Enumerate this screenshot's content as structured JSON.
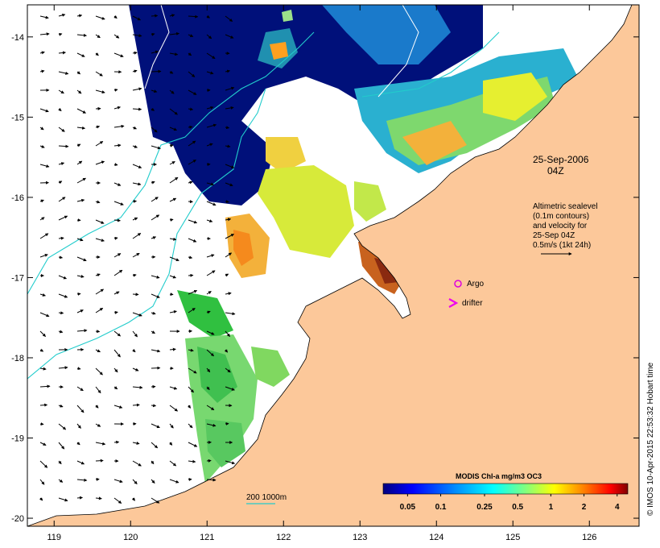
{
  "map": {
    "lon_ticks": [
      "119",
      "120",
      "121",
      "122",
      "123",
      "124",
      "125",
      "126"
    ],
    "lat_ticks": [
      "-14",
      "-15",
      "-16",
      "-17",
      "-18",
      "-19",
      "-20"
    ],
    "lon_range": [
      118.65,
      126.65
    ],
    "lat_range": [
      -13.6,
      -20.1
    ],
    "date_line1": "25-Sep-2006",
    "date_line2": "04Z",
    "altimetry_note": [
      "Altimetric sealevel",
      "(0.1m contours)",
      "and velocity for",
      "25-Sep 04Z",
      "0.5m/s (1kt 24h)"
    ],
    "argo_label": "Argo",
    "drifter_label": "drifter",
    "argo_marker_color": "#dd00dd",
    "drifter_marker_color": "#ee00ee",
    "isobath_label": "200  1000m",
    "isobath_color": "#22cccc",
    "land_color": "#fcc89a",
    "colorbar_title": "MODIS Chl-a mg/m3 OC3",
    "colorbar_ticks": [
      "0.05",
      "0.1",
      "0.25",
      "0.5",
      "1",
      "2",
      "4"
    ],
    "colorbar_tick_values": [
      0.05,
      0.1,
      0.25,
      0.5,
      1,
      2,
      4
    ],
    "colorbar_range": [
      0.03,
      5
    ],
    "colorbar_colors": [
      "#00007f",
      "#0000ff",
      "#0080ff",
      "#00ffff",
      "#80ff80",
      "#ffff00",
      "#ff8000",
      "#ff0000",
      "#800000"
    ],
    "side_credit": "© IMOS 10-Apr-2015 22:53:32 Hobart time"
  }
}
